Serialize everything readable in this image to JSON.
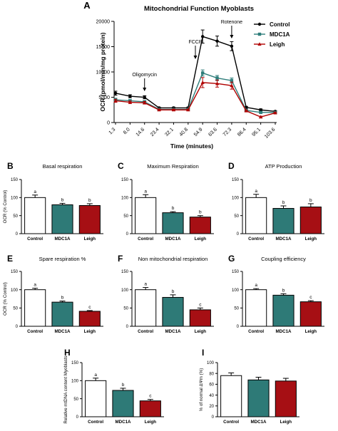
{
  "chart_data": [
    {
      "type": "line",
      "panel": "A",
      "title": "Mitochondrial Function Myoblasts",
      "xlabel": "Time (minutes)",
      "ylabel": "OCR (pmol/min/mg protein)",
      "ylim": [
        0,
        20000
      ],
      "yticks": [
        "0",
        "5000",
        "10000",
        "15000",
        "20000"
      ],
      "x": [
        "1.3",
        "8.0",
        "14.6",
        "23.4",
        "32.1",
        "40.8",
        "54.9",
        "63.6",
        "72.3",
        "86.4",
        "95.1",
        "103.6"
      ],
      "series": [
        {
          "name": "Control",
          "color": "#000000",
          "marker": "circle",
          "values": [
            5800,
            5200,
            5000,
            2900,
            2900,
            2900,
            17000,
            16100,
            15100,
            3000,
            2500,
            2200
          ],
          "errors": [
            400,
            300,
            300,
            150,
            150,
            150,
            1300,
            1000,
            900,
            200,
            200,
            150
          ]
        },
        {
          "name": "MDC1A",
          "color": "#2e7d7a",
          "marker": "square",
          "values": [
            4500,
            4300,
            4100,
            2600,
            2600,
            2600,
            9800,
            8800,
            8300,
            2400,
            2000,
            2000
          ],
          "errors": [
            300,
            250,
            250,
            150,
            150,
            150,
            600,
            500,
            500,
            150,
            150,
            150
          ]
        },
        {
          "name": "Leigh",
          "color": "#b00000",
          "marker": "triangle",
          "values": [
            4300,
            4000,
            3900,
            2500,
            2500,
            2500,
            7900,
            7700,
            7300,
            2300,
            1100,
            1900
          ],
          "errors": [
            300,
            250,
            250,
            150,
            150,
            150,
            1000,
            700,
            700,
            150,
            150,
            150
          ]
        }
      ],
      "annotations": [
        {
          "label": "Oligomycin",
          "at": "14.6"
        },
        {
          "label": "FCCP",
          "at": "40.8"
        },
        {
          "label": "Rotenone",
          "at": "72.3"
        }
      ]
    },
    {
      "type": "bar",
      "panel": "B",
      "title": "Basal respiration",
      "ylabel": "OCR (% Control)",
      "ylim": [
        0,
        150
      ],
      "yticks": [
        "0",
        "50",
        "100",
        "150"
      ],
      "categories": [
        "Control",
        "MDC1A",
        "Leigh"
      ],
      "values": [
        100,
        80,
        78
      ],
      "errors": [
        7,
        4,
        5
      ],
      "letters": [
        "a",
        "b",
        "b"
      ]
    },
    {
      "type": "bar",
      "panel": "C",
      "title": "Maximum Respiration",
      "ylabel": "",
      "ylim": [
        0,
        150
      ],
      "yticks": [
        "0",
        "50",
        "100",
        "150"
      ],
      "categories": [
        "Control",
        "MDC1A",
        "Leigh"
      ],
      "values": [
        100,
        58,
        46
      ],
      "errors": [
        8,
        3,
        4
      ],
      "letters": [
        "a",
        "b",
        "b"
      ]
    },
    {
      "type": "bar",
      "panel": "D",
      "title": "ATP Production",
      "ylabel": "",
      "ylim": [
        0,
        150
      ],
      "yticks": [
        "0",
        "50",
        "100",
        "150"
      ],
      "categories": [
        "Control",
        "MDC1A",
        "Leigh"
      ],
      "values": [
        100,
        70,
        74
      ],
      "errors": [
        9,
        7,
        9
      ],
      "letters": [
        "a",
        "b",
        "b"
      ]
    },
    {
      "type": "bar",
      "panel": "E",
      "title": "Spare respiration %",
      "ylabel": "OCR (% Control)",
      "ylim": [
        0,
        150
      ],
      "yticks": [
        "0",
        "50",
        "100",
        "150"
      ],
      "categories": [
        "Control",
        "MDC1A",
        "Leigh"
      ],
      "values": [
        100,
        66,
        41
      ],
      "errors": [
        4,
        3,
        2
      ],
      "letters": [
        "a",
        "b",
        "c"
      ]
    },
    {
      "type": "bar",
      "panel": "F",
      "title": "Non mitochondrial respiration",
      "ylabel": "",
      "ylim": [
        0,
        150
      ],
      "yticks": [
        "0",
        "50",
        "100",
        "150"
      ],
      "categories": [
        "Control",
        "MDC1A",
        "Leigh"
      ],
      "values": [
        100,
        79,
        45
      ],
      "errors": [
        6,
        7,
        5
      ],
      "letters": [
        "a",
        "b",
        "c"
      ]
    },
    {
      "type": "bar",
      "panel": "G",
      "title": "Coupling efficiency",
      "ylabel": "",
      "ylim": [
        0,
        150
      ],
      "yticks": [
        "0",
        "50",
        "100",
        "150"
      ],
      "categories": [
        "Control",
        "MDC1A",
        "Leigh"
      ],
      "values": [
        100,
        85,
        67
      ],
      "errors": [
        3,
        4,
        3
      ],
      "letters": [
        "a",
        "b",
        "c"
      ]
    },
    {
      "type": "bar",
      "panel": "H",
      "title": "",
      "ylabel": "Relative mtDNA content Myoblasts",
      "ylim": [
        0,
        150
      ],
      "yticks": [
        "0",
        "50",
        "100",
        "150"
      ],
      "categories": [
        "Control",
        "MDC1A",
        "Leigh"
      ],
      "values": [
        100,
        73,
        44
      ],
      "errors": [
        7,
        6,
        4
      ],
      "letters": [
        "a",
        "b",
        "c"
      ]
    },
    {
      "type": "bar",
      "panel": "I",
      "title": "",
      "ylabel": "% of normal ΔΨm (%)",
      "ylim": [
        0,
        100
      ],
      "yticks": [
        "0",
        "20",
        "40",
        "60",
        "80",
        "100"
      ],
      "categories": [
        "Control",
        "MDC1A",
        "Leigh"
      ],
      "values": [
        76,
        68,
        66
      ],
      "errors": [
        5,
        5,
        5
      ],
      "letters": [
        "",
        "",
        ""
      ]
    }
  ]
}
